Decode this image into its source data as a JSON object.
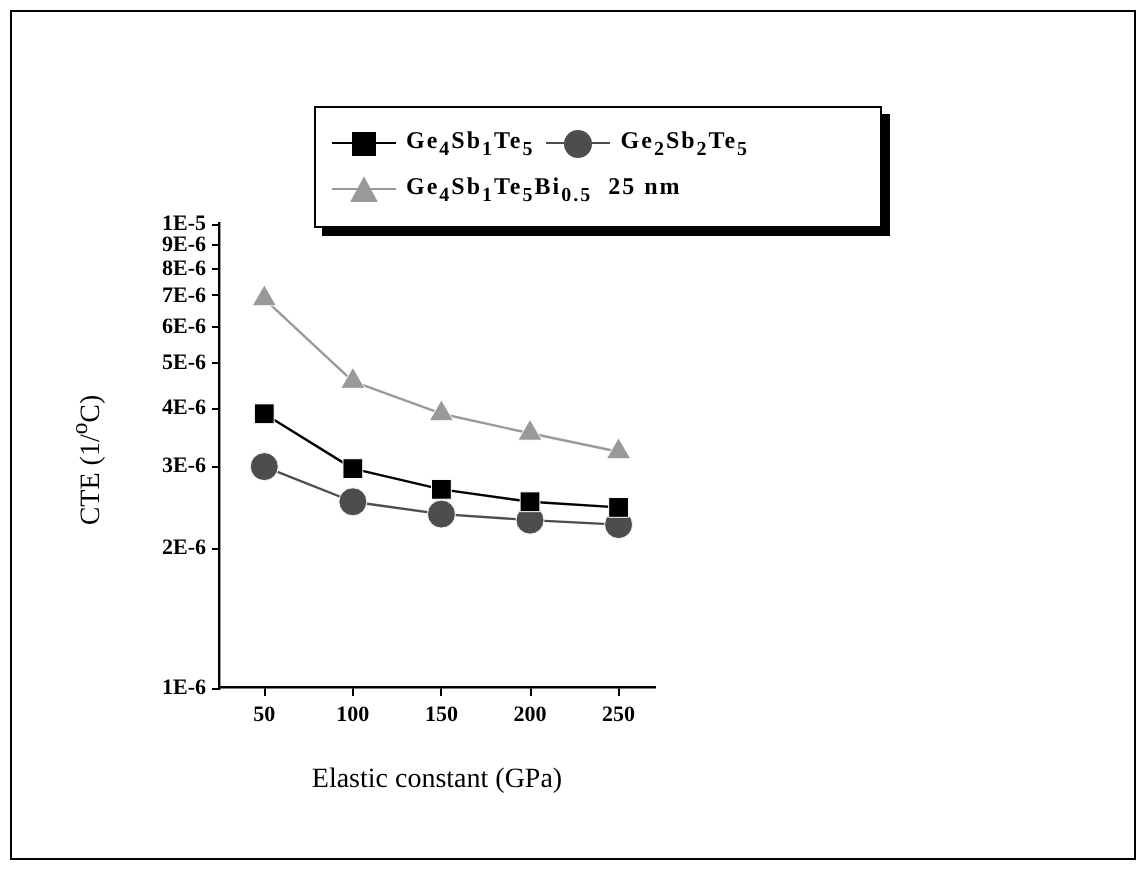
{
  "chart_data": {
    "type": "line",
    "xlabel": "Elastic constant (GPa)",
    "ylabel": "CTE (1/$^{o}$C)",
    "x": [
      50,
      100,
      150,
      200,
      250
    ],
    "series": [
      {
        "name": "Ge$_{4}$Sb$_{1}$Te$_{5}$",
        "color": "#000000",
        "marker": "square",
        "values": [
          3.9e-06,
          2.97e-06,
          2.68e-06,
          2.52e-06,
          2.45e-06
        ]
      },
      {
        "name": "Ge$_{2}$Sb$_{2}$Te$_{5}$",
        "color": "#4d4d4d",
        "marker": "circle",
        "values": [
          3e-06,
          2.52e-06,
          2.37e-06,
          2.3e-06,
          2.25e-06
        ]
      },
      {
        "name": "Ge$_{4}$Sb$_{1}$Te$_{5}$Bi$_{0.5}$  25 nm",
        "color": "#999999",
        "marker": "triangle",
        "values": [
          6.9e-06,
          4.58e-06,
          3.9e-06,
          3.54e-06,
          3.23e-06
        ]
      }
    ],
    "log": "y",
    "xlim": [
      25,
      270
    ],
    "xticks": [
      50,
      100,
      150,
      200,
      250
    ],
    "ylim": [
      1e-06,
      1e-05
    ],
    "yticks": [
      {
        "value": 1e-06,
        "label": "1E-6"
      },
      {
        "value": 2e-06,
        "label": "2E-6"
      },
      {
        "value": 3e-06,
        "label": "3E-6"
      },
      {
        "value": 4e-06,
        "label": "4E-6"
      },
      {
        "value": 5e-06,
        "label": "5E-6"
      },
      {
        "value": 6e-06,
        "label": "6E-6"
      },
      {
        "value": 7e-06,
        "label": "7E-6"
      },
      {
        "value": 8e-06,
        "label": "8E-6"
      },
      {
        "value": 9e-06,
        "label": "9E-6"
      },
      {
        "value": 1e-05,
        "label": "1E-5"
      }
    ],
    "grid": false,
    "legend": "top",
    "line_style": "solid"
  }
}
